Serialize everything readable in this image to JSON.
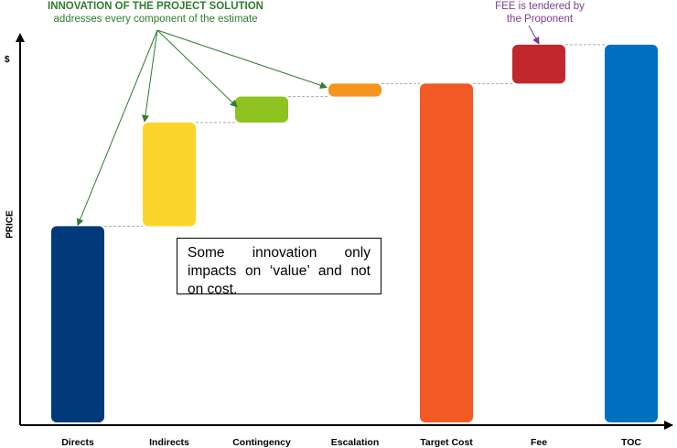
{
  "annotations": {
    "innovation_title": "INNOVATION OF THE PROJECT SOLUTION",
    "innovation_subtitle": "addresses every component of the estimate",
    "fee_note_line1": "FEE is tendered by",
    "fee_note_line2": "the Proponent",
    "note_box": "Some innovation only impacts on ‘value’ and not on cost.",
    "y_unit": "$",
    "y_label": "PRICE"
  },
  "chart_data": {
    "type": "bar",
    "subtype": "waterfall",
    "title": "",
    "xlabel": "",
    "ylabel": "PRICE",
    "y_unit": "$",
    "ylim": [
      0,
      100
    ],
    "grid": false,
    "legend": "none",
    "categories": [
      "Directs",
      "Indirects",
      "Contingency",
      "Escalation",
      "Target Cost",
      "Fee",
      "TOC"
    ],
    "bars": [
      {
        "label": "Directs",
        "start": 0,
        "end": 53,
        "color": "#003a7a"
      },
      {
        "label": "Indirects",
        "start": 53,
        "end": 81,
        "color": "#fdd42c"
      },
      {
        "label": "Contingency",
        "start": 81,
        "end": 88,
        "color": "#8dc21f"
      },
      {
        "label": "Escalation",
        "start": 88,
        "end": 91.5,
        "color": "#f7941d"
      },
      {
        "label": "Target Cost",
        "start": 0,
        "end": 91.5,
        "color": "#f15a24"
      },
      {
        "label": "Fee",
        "start": 91.5,
        "end": 102,
        "color": "#c1272d"
      },
      {
        "label": "TOC",
        "start": 0,
        "end": 102,
        "color": "#0070c0"
      }
    ]
  }
}
